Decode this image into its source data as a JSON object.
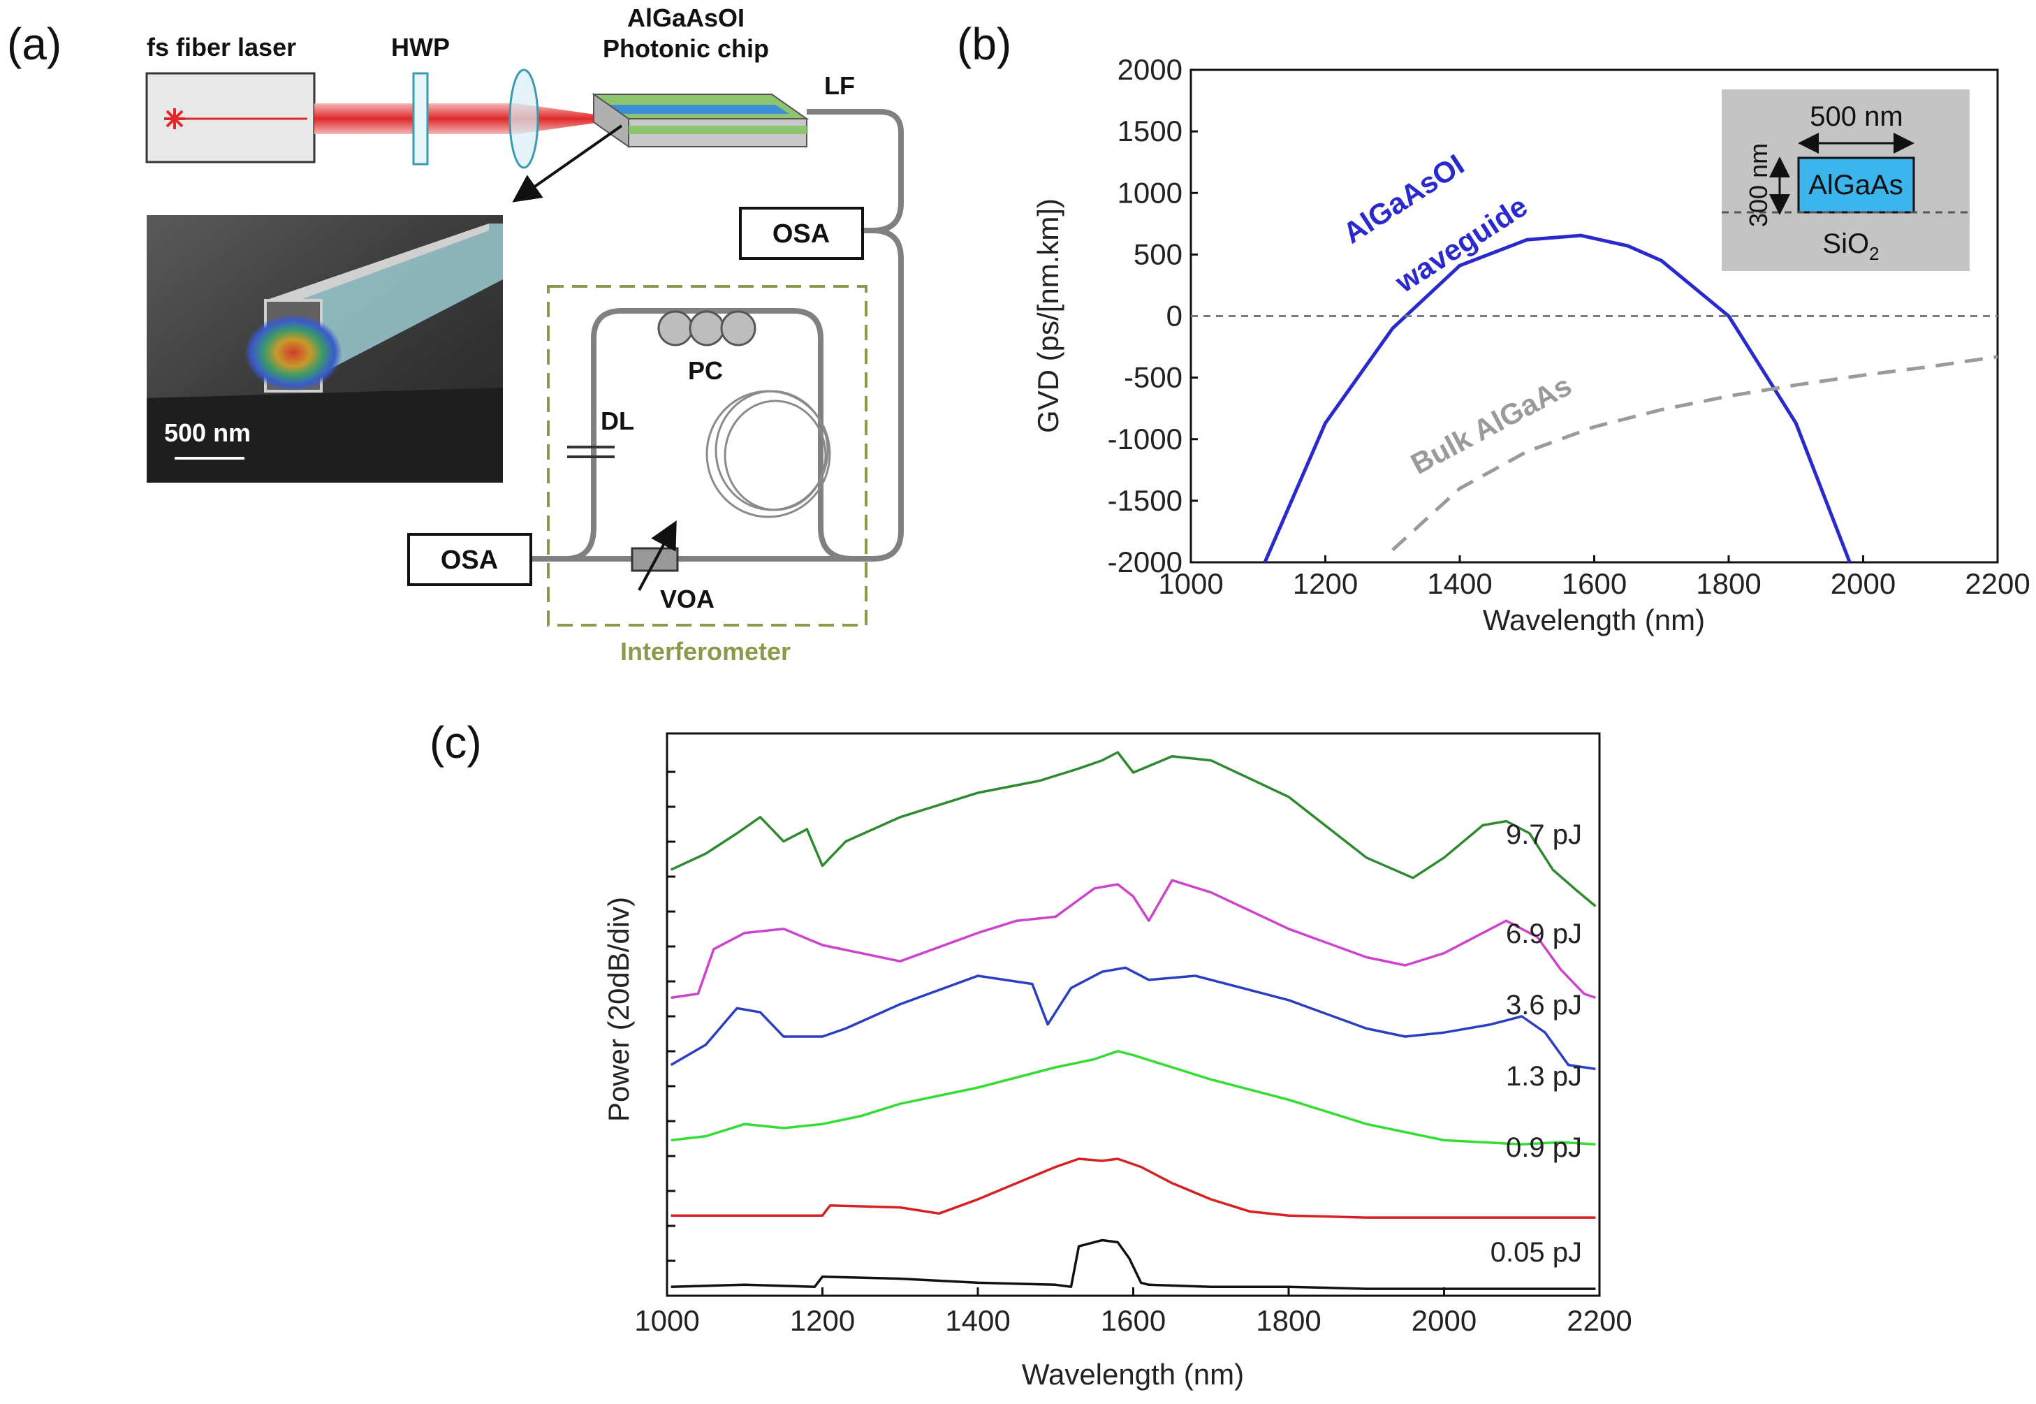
{
  "panel_a": {
    "label": "(a)",
    "laser": "fs fiber laser",
    "hwp": "HWP",
    "chip_line1": "AlGaAsOI",
    "chip_line2": "Photonic chip",
    "lf": "LF",
    "osa_top": "OSA",
    "osa_bottom": "OSA",
    "pc": "PC",
    "dl": "DL",
    "voa": "VOA",
    "interferometer": "Interferometer",
    "scale_bar": "500 nm",
    "colors": {
      "laser_beam": "#e0282a",
      "interferometer_box": "#8a9a4a",
      "fiber": "#808080",
      "chip_green": "#8cc56e",
      "chip_blue": "#3d8fd8"
    }
  },
  "panel_b": {
    "label": "(b)",
    "inset": {
      "width_label": "500 nm",
      "height_label": "300 nm",
      "core_label": "AlGaAs",
      "substrate_label": "SiO",
      "substrate_sub": "2"
    },
    "curve_label_blue_1": "AlGaAsOI",
    "curve_label_blue_2": "waveguide",
    "curve_label_gray": "Bulk AlGaAs",
    "chart_data": {
      "type": "line",
      "xlabel": "Wavelength (nm)",
      "ylabel": "GVD (ps/[nm.km])",
      "xlim": [
        1000,
        2200
      ],
      "ylim": [
        -2000,
        2000
      ],
      "xticks": [
        "1000",
        "1200",
        "1400",
        "1600",
        "1800",
        "2000",
        "2200"
      ],
      "yticks": [
        "2000",
        "1500",
        "1000",
        "500",
        "0",
        "-500",
        "-1000",
        "-1500",
        "-2000"
      ],
      "series": [
        {
          "name": "AlGaAsOI waveguide",
          "color": "#2a2acc",
          "style": "solid",
          "x": [
            1110,
            1200,
            1300,
            1400,
            1500,
            1580,
            1650,
            1700,
            1800,
            1900,
            1980
          ],
          "y": [
            -2000,
            -870,
            -100,
            410,
            620,
            655,
            570,
            450,
            0,
            -870,
            -2000
          ]
        },
        {
          "name": "Bulk AlGaAs",
          "color": "#9a9a9a",
          "style": "dashed",
          "x": [
            1300,
            1400,
            1500,
            1600,
            1700,
            1800,
            1900,
            2000,
            2100,
            2200
          ],
          "y": [
            -1900,
            -1400,
            -1100,
            -900,
            -760,
            -650,
            -560,
            -480,
            -410,
            -330
          ]
        },
        {
          "name": "zero",
          "color": "#7a7a7a",
          "style": "dashed",
          "x": [
            1000,
            2200
          ],
          "y": [
            0,
            0
          ]
        }
      ]
    }
  },
  "panel_c": {
    "label": "(c)",
    "chart_data": {
      "type": "line",
      "xlabel": "Wavelength (nm)",
      "ylabel": "Power (20dB/div)",
      "xlim": [
        1000,
        2200
      ],
      "xticks": [
        "1000",
        "1200",
        "1400",
        "1600",
        "1800",
        "2000",
        "2200"
      ],
      "series": [
        {
          "name": "9.7 pJ",
          "color": "#2f8a2f",
          "offset": 5,
          "x": [
            1005,
            1050,
            1090,
            1120,
            1150,
            1180,
            1200,
            1230,
            1300,
            1400,
            1480,
            1530,
            1560,
            1580,
            1600,
            1650,
            1700,
            1800,
            1900,
            1960,
            2000,
            2050,
            2080,
            2110,
            2140,
            2170,
            2195
          ],
          "y": [
            1.6,
            2.0,
            2.5,
            2.9,
            2.3,
            2.6,
            1.7,
            2.3,
            2.9,
            3.5,
            3.8,
            4.1,
            4.3,
            4.5,
            4.0,
            4.4,
            4.3,
            3.4,
            1.9,
            1.4,
            1.9,
            2.7,
            2.8,
            2.5,
            1.6,
            1.1,
            0.7
          ]
        },
        {
          "name": "6.9 pJ",
          "color": "#cc44cc",
          "offset": 4,
          "x": [
            1005,
            1040,
            1060,
            1100,
            1150,
            1200,
            1300,
            1400,
            1450,
            1500,
            1550,
            1580,
            1600,
            1620,
            1650,
            1700,
            1800,
            1900,
            1950,
            2000,
            2050,
            2080,
            2120,
            2150,
            2180,
            2195
          ],
          "y": [
            0.2,
            0.3,
            1.4,
            1.8,
            1.9,
            1.5,
            1.1,
            1.8,
            2.1,
            2.2,
            2.9,
            3.0,
            2.7,
            2.1,
            3.1,
            2.8,
            1.9,
            1.2,
            1.0,
            1.3,
            1.8,
            2.1,
            1.7,
            0.9,
            0.3,
            0.2
          ]
        },
        {
          "name": "3.6 pJ",
          "color": "#2a3fbf",
          "offset": 3,
          "x": [
            1005,
            1050,
            1090,
            1120,
            1150,
            1200,
            1230,
            1300,
            1400,
            1470,
            1490,
            1520,
            1560,
            1590,
            1620,
            1680,
            1800,
            1900,
            1950,
            2000,
            2060,
            2100,
            2130,
            2160,
            2195
          ],
          "y": [
            0.3,
            0.8,
            1.7,
            1.6,
            1.0,
            1.0,
            1.2,
            1.8,
            2.5,
            2.3,
            1.3,
            2.2,
            2.6,
            2.7,
            2.4,
            2.5,
            1.9,
            1.2,
            1.0,
            1.1,
            1.3,
            1.5,
            1.1,
            0.3,
            0.2
          ]
        },
        {
          "name": "1.3 pJ",
          "color": "#33dd33",
          "offset": 2,
          "x": [
            1005,
            1050,
            1100,
            1150,
            1200,
            1250,
            1300,
            1400,
            1500,
            1550,
            1580,
            1600,
            1650,
            1700,
            1800,
            1900,
            2000,
            2050,
            2100,
            2150,
            2195
          ],
          "y": [
            0.2,
            0.3,
            0.6,
            0.5,
            0.6,
            0.8,
            1.1,
            1.5,
            2.0,
            2.2,
            2.4,
            2.3,
            2.0,
            1.7,
            1.2,
            0.6,
            0.2,
            0.15,
            0.1,
            0.15,
            0.1
          ]
        },
        {
          "name": "0.9 pJ",
          "color": "#d42222",
          "offset": 1,
          "x": [
            1005,
            1100,
            1200,
            1210,
            1300,
            1350,
            1400,
            1450,
            1500,
            1530,
            1560,
            1580,
            1610,
            1650,
            1700,
            1750,
            1800,
            1900,
            2000,
            2100,
            2195
          ],
          "y": [
            0.1,
            0.1,
            0.1,
            0.35,
            0.3,
            0.15,
            0.5,
            0.9,
            1.3,
            1.5,
            1.45,
            1.5,
            1.3,
            0.9,
            0.5,
            0.2,
            0.1,
            0.05,
            0.05,
            0.05,
            0.05
          ]
        },
        {
          "name": "0.05 pJ",
          "color": "#111111",
          "offset": 0,
          "x": [
            1005,
            1100,
            1190,
            1200,
            1300,
            1400,
            1500,
            1520,
            1530,
            1560,
            1580,
            1595,
            1610,
            1620,
            1700,
            1800,
            1900,
            2000,
            2100,
            2195
          ],
          "y": [
            0.1,
            0.15,
            0.1,
            0.35,
            0.3,
            0.2,
            0.15,
            0.1,
            1.1,
            1.25,
            1.2,
            0.8,
            0.2,
            0.15,
            0.1,
            0.1,
            0.05,
            0.05,
            0.05,
            0.05
          ]
        }
      ],
      "labels": [
        "9.7 pJ",
        "6.9 pJ",
        "3.6 pJ",
        "1.3 pJ",
        "0.9 pJ",
        "0.05 pJ"
      ]
    }
  }
}
